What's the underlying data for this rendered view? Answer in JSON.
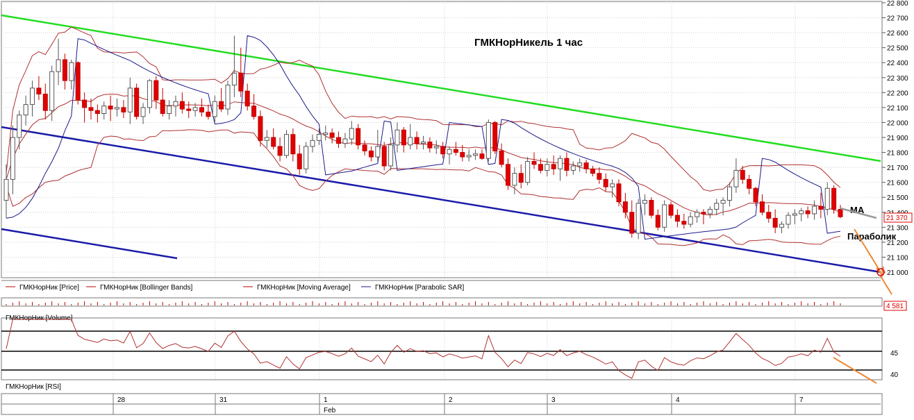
{
  "chart_data": {
    "type": "candlestick",
    "title": "ГМКНорНикель   1 час",
    "annotations": {
      "ma": "MA",
      "parabolic": "Параболик"
    },
    "price_axis": {
      "ylim": [
        21000,
        22800
      ],
      "ticks": [
        "22 800",
        "22 700",
        "22 600",
        "22 500",
        "22 400",
        "22 300",
        "22 200",
        "22 100",
        "22 000",
        "21 900",
        "21 800",
        "21 700",
        "21 600",
        "21 500",
        "21 400",
        "21 300",
        "21 200",
        "21 100",
        "21 000"
      ],
      "last_price_label": "21 370",
      "last_price": 21370
    },
    "legend": [
      {
        "name": "ГМКНорНик [Price]",
        "color": "#c00000"
      },
      {
        "name": "ГМКНорНик [Bollinger Bands]",
        "color": "#c00000"
      },
      {
        "name": "ГМКНорНик [Moving Average]",
        "color": "#c00000"
      },
      {
        "name": "ГМКНорНик [Parabolic SAR]",
        "color": "#1a1a8c"
      }
    ],
    "volume": {
      "label": "ГМКНорНик [Volume]",
      "last_label": "4 581"
    },
    "rsi": {
      "label": "ГМКНорНик [RSI]",
      "ticks": [
        "45",
        "40"
      ]
    },
    "x_axis": {
      "day_labels": [
        "28",
        "31",
        "1",
        "2",
        "3",
        "4",
        "7"
      ],
      "month_label": "Feb"
    },
    "colors": {
      "up": "#ffffff",
      "down": "#e00000",
      "green_line": "#22dd22",
      "blue_line": "#1a1aa8",
      "band": "#b03030",
      "arrow": "#ee8833"
    },
    "candles": [
      [
        21480,
        21720,
        21360,
        21620
      ],
      [
        21620,
        21980,
        21520,
        21900
      ],
      [
        21900,
        22080,
        21820,
        22050
      ],
      [
        22050,
        22180,
        21980,
        22120
      ],
      [
        22120,
        22280,
        22040,
        22230
      ],
      [
        22230,
        22310,
        22150,
        22190
      ],
      [
        22190,
        22260,
        22020,
        22080
      ],
      [
        22080,
        22380,
        22010,
        22340
      ],
      [
        22340,
        22560,
        22250,
        22420
      ],
      [
        22420,
        22460,
        22220,
        22280
      ],
      [
        22280,
        22420,
        22220,
        22400
      ],
      [
        22400,
        22410,
        22120,
        22150
      ],
      [
        22150,
        22200,
        22000,
        22100
      ],
      [
        22100,
        22160,
        22020,
        22080
      ],
      [
        22080,
        22120,
        22000,
        22060
      ],
      [
        22060,
        22140,
        22020,
        22110
      ],
      [
        22110,
        22180,
        22010,
        22090
      ],
      [
        22090,
        22160,
        22040,
        22100
      ],
      [
        22100,
        22150,
        22030,
        22070
      ],
      [
        22070,
        22300,
        21990,
        22230
      ],
      [
        22230,
        22260,
        22020,
        22040
      ],
      [
        22040,
        22130,
        21990,
        22100
      ],
      [
        22100,
        22290,
        22060,
        22280
      ],
      [
        22280,
        22310,
        22090,
        22150
      ],
      [
        22150,
        22230,
        22040,
        22060
      ],
      [
        22060,
        22150,
        22020,
        22110
      ],
      [
        22110,
        22180,
        22040,
        22140
      ],
      [
        22140,
        22200,
        22060,
        22090
      ],
      [
        22090,
        22140,
        22030,
        22080
      ],
      [
        22080,
        22130,
        22040,
        22100
      ],
      [
        22100,
        22160,
        22040,
        22070
      ],
      [
        22070,
        22120,
        22020,
        22040
      ],
      [
        22040,
        22180,
        22000,
        22140
      ],
      [
        22140,
        22230,
        22070,
        22090
      ],
      [
        22090,
        22280,
        22050,
        22250
      ],
      [
        22250,
        22580,
        22170,
        22330
      ],
      [
        22330,
        22500,
        22170,
        22210
      ],
      [
        22210,
        22260,
        22080,
        22110
      ],
      [
        22110,
        22190,
        22020,
        22040
      ],
      [
        22040,
        22080,
        21840,
        21880
      ],
      [
        21880,
        21950,
        21830,
        21900
      ],
      [
        21900,
        21960,
        21820,
        21840
      ],
      [
        21840,
        21900,
        21740,
        21780
      ],
      [
        21780,
        21950,
        21760,
        21920
      ],
      [
        21920,
        21960,
        21740,
        21790
      ],
      [
        21790,
        21850,
        21650,
        21690
      ],
      [
        21690,
        21870,
        21660,
        21840
      ],
      [
        21840,
        21920,
        21800,
        21880
      ],
      [
        21880,
        21960,
        21850,
        21920
      ],
      [
        21920,
        21980,
        21880,
        21930
      ],
      [
        21930,
        21960,
        21860,
        21900
      ],
      [
        21900,
        21940,
        21830,
        21860
      ],
      [
        21860,
        21930,
        21830,
        21890
      ],
      [
        21890,
        22010,
        21850,
        21960
      ],
      [
        21960,
        21990,
        21820,
        21850
      ],
      [
        21850,
        21880,
        21780,
        21810
      ],
      [
        21810,
        21840,
        21740,
        21770
      ],
      [
        21770,
        21950,
        21740,
        21840
      ],
      [
        21840,
        21870,
        21680,
        21710
      ],
      [
        21710,
        21900,
        21680,
        21850
      ],
      [
        21850,
        22000,
        21800,
        21950
      ],
      [
        21950,
        21970,
        21800,
        21850
      ],
      [
        21850,
        21990,
        21820,
        21900
      ],
      [
        21900,
        21940,
        21820,
        21860
      ],
      [
        21860,
        21910,
        21820,
        21870
      ],
      [
        21870,
        21900,
        21800,
        21830
      ],
      [
        21830,
        21880,
        21790,
        21840
      ],
      [
        21840,
        21870,
        21760,
        21790
      ],
      [
        21790,
        21840,
        21720,
        21820
      ],
      [
        21820,
        21870,
        21780,
        21800
      ],
      [
        21800,
        21850,
        21740,
        21770
      ],
      [
        21770,
        21820,
        21740,
        21780
      ],
      [
        21780,
        21820,
        21750,
        21790
      ],
      [
        21790,
        21820,
        21750,
        21760
      ],
      [
        21760,
        22020,
        21740,
        22000
      ],
      [
        22000,
        22010,
        21790,
        21810
      ],
      [
        21810,
        21860,
        21700,
        21720
      ],
      [
        21720,
        21760,
        21550,
        21580
      ],
      [
        21580,
        21700,
        21520,
        21660
      ],
      [
        21660,
        21720,
        21560,
        21600
      ],
      [
        21600,
        21770,
        21580,
        21740
      ],
      [
        21740,
        21800,
        21690,
        21720
      ],
      [
        21720,
        21760,
        21660,
        21680
      ],
      [
        21680,
        21760,
        21640,
        21720
      ],
      [
        21720,
        21780,
        21650,
        21690
      ],
      [
        21690,
        21780,
        21610,
        21760
      ],
      [
        21760,
        21800,
        21640,
        21680
      ],
      [
        21680,
        21740,
        21650,
        21710
      ],
      [
        21710,
        21760,
        21670,
        21730
      ],
      [
        21730,
        21750,
        21660,
        21690
      ],
      [
        21690,
        21710,
        21640,
        21660
      ],
      [
        21660,
        21700,
        21590,
        21620
      ],
      [
        21620,
        21660,
        21540,
        21570
      ],
      [
        21570,
        21620,
        21500,
        21590
      ],
      [
        21590,
        21620,
        21440,
        21470
      ],
      [
        21470,
        21530,
        21360,
        21400
      ],
      [
        21400,
        21480,
        21230,
        21260
      ],
      [
        21260,
        21490,
        21220,
        21460
      ],
      [
        21460,
        21520,
        21380,
        21480
      ],
      [
        21480,
        21500,
        21360,
        21380
      ],
      [
        21380,
        21420,
        21280,
        21300
      ],
      [
        21300,
        21480,
        21270,
        21450
      ],
      [
        21450,
        21470,
        21360,
        21380
      ],
      [
        21380,
        21420,
        21300,
        21340
      ],
      [
        21340,
        21390,
        21290,
        21320
      ],
      [
        21320,
        21400,
        21300,
        21370
      ],
      [
        21370,
        21420,
        21330,
        21400
      ],
      [
        21400,
        21420,
        21320,
        21390
      ],
      [
        21390,
        21440,
        21360,
        21420
      ],
      [
        21420,
        21490,
        21380,
        21460
      ],
      [
        21460,
        21500,
        21380,
        21480
      ],
      [
        21480,
        21600,
        21440,
        21570
      ],
      [
        21570,
        21760,
        21530,
        21680
      ],
      [
        21680,
        21710,
        21590,
        21620
      ],
      [
        21620,
        21650,
        21520,
        21560
      ],
      [
        21560,
        21570,
        21440,
        21470
      ],
      [
        21470,
        21520,
        21380,
        21400
      ],
      [
        21400,
        21450,
        21330,
        21360
      ],
      [
        21360,
        21420,
        21260,
        21300
      ],
      [
        21300,
        21340,
        21260,
        21320
      ],
      [
        21320,
        21400,
        21290,
        21380
      ],
      [
        21380,
        21420,
        21320,
        21390
      ],
      [
        21390,
        21430,
        21340,
        21410
      ],
      [
        21410,
        21440,
        21360,
        21390
      ],
      [
        21390,
        21480,
        21350,
        21440
      ],
      [
        21440,
        21530,
        21360,
        21420
      ],
      [
        21420,
        21600,
        21380,
        21560
      ],
      [
        21560,
        21580,
        21390,
        21420
      ],
      [
        21420,
        21450,
        21360,
        21370
      ]
    ]
  }
}
